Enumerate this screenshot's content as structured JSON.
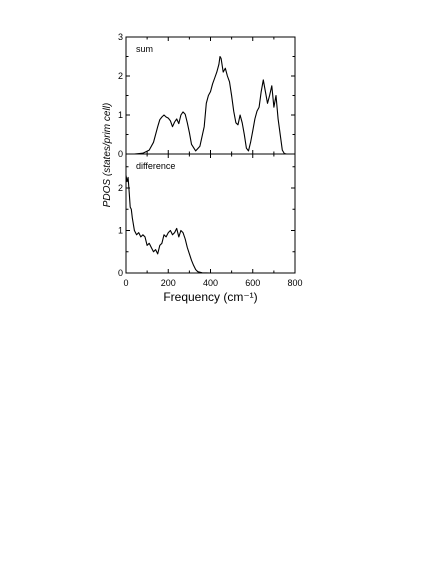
{
  "chart_data": [
    {
      "type": "line",
      "panel_label": "sum",
      "xlim": [
        0,
        800
      ],
      "ylim": [
        0,
        3
      ],
      "x_ticks": [
        0,
        200,
        400,
        600,
        800
      ],
      "y_ticks": [
        0,
        1,
        2,
        3
      ],
      "y_tick_labels": [
        "0",
        "1",
        "2",
        "3"
      ],
      "series": [
        {
          "x": [
            0,
            40,
            80,
            110,
            130,
            150,
            160,
            170,
            180,
            190,
            200,
            210,
            220,
            230,
            240,
            250,
            260,
            270,
            280,
            290,
            300,
            310,
            330,
            350,
            370,
            380,
            390,
            400,
            410,
            420,
            430,
            440,
            445,
            450,
            460,
            470,
            480,
            490,
            500,
            510,
            520,
            530,
            540,
            550,
            560,
            570,
            580,
            590,
            600,
            610,
            620,
            630,
            640,
            650,
            660,
            670,
            680,
            690,
            700,
            710,
            720,
            730,
            740,
            750,
            760,
            800
          ],
          "y": [
            0,
            0,
            0.02,
            0.1,
            0.3,
            0.7,
            0.88,
            0.95,
            1.0,
            0.95,
            0.92,
            0.85,
            0.7,
            0.82,
            0.9,
            0.78,
            1.0,
            1.08,
            1.02,
            0.8,
            0.55,
            0.25,
            0.08,
            0.2,
            0.7,
            1.3,
            1.5,
            1.6,
            1.8,
            1.95,
            2.1,
            2.3,
            2.5,
            2.45,
            2.1,
            2.2,
            2.0,
            1.85,
            1.5,
            1.1,
            0.8,
            0.75,
            1.0,
            0.8,
            0.5,
            0.15,
            0.08,
            0.3,
            0.6,
            0.9,
            1.1,
            1.2,
            1.6,
            1.9,
            1.6,
            1.3,
            1.5,
            1.75,
            1.2,
            1.5,
            0.9,
            0.5,
            0.1,
            0.01,
            0,
            0
          ]
        }
      ]
    },
    {
      "type": "line",
      "panel_label": "difference",
      "xlabel": "Frequency (cm⁻¹)",
      "xlim": [
        0,
        800
      ],
      "ylim": [
        0,
        2.8
      ],
      "x_ticks": [
        0,
        200,
        400,
        600,
        800
      ],
      "x_tick_labels": [
        "0",
        "200",
        "400",
        "600",
        "800"
      ],
      "y_ticks": [
        0,
        1,
        2
      ],
      "y_tick_labels": [
        "0",
        "1",
        "2"
      ],
      "series": [
        {
          "x": [
            0,
            5,
            10,
            15,
            20,
            25,
            30,
            40,
            50,
            60,
            70,
            80,
            90,
            100,
            110,
            120,
            130,
            140,
            150,
            160,
            170,
            180,
            190,
            200,
            210,
            220,
            230,
            240,
            250,
            260,
            270,
            280,
            290,
            300,
            310,
            320,
            330,
            340,
            360,
            400,
            800
          ],
          "y": [
            2.3,
            2.15,
            2.25,
            1.9,
            1.55,
            1.5,
            1.3,
            1.0,
            0.9,
            0.95,
            0.85,
            0.9,
            0.85,
            0.65,
            0.7,
            0.6,
            0.5,
            0.55,
            0.45,
            0.65,
            0.7,
            0.9,
            0.85,
            0.95,
            1.0,
            0.9,
            0.95,
            1.05,
            0.85,
            1.0,
            0.95,
            0.8,
            0.6,
            0.45,
            0.3,
            0.18,
            0.08,
            0.03,
            0.005,
            0,
            0
          ]
        }
      ]
    }
  ],
  "shared_ylabel": "PDOS (states/prim cell)"
}
